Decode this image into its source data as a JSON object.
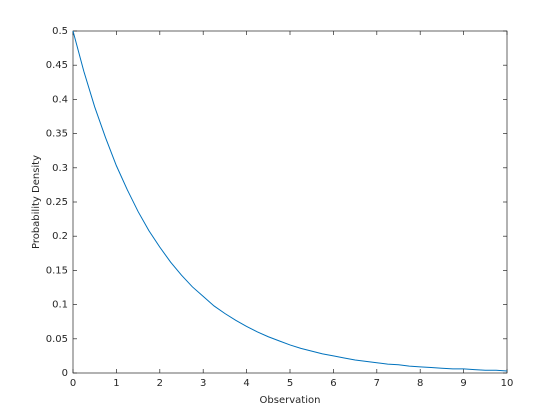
{
  "chart_data": {
    "type": "line",
    "xlabel": "Observation",
    "ylabel": "Probability Density",
    "x": [
      0,
      0.25,
      0.5,
      0.75,
      1,
      1.25,
      1.5,
      1.75,
      2,
      2.25,
      2.5,
      2.75,
      3,
      3.25,
      3.5,
      3.75,
      4,
      4.25,
      4.5,
      4.75,
      5,
      5.25,
      5.5,
      5.75,
      6,
      6.25,
      6.5,
      6.75,
      7,
      7.25,
      7.5,
      7.75,
      8,
      8.25,
      8.5,
      8.75,
      9,
      9.25,
      9.5,
      9.75,
      10
    ],
    "series": [
      {
        "color": "#0072bd",
        "values": [
          0.5,
          0.441,
          0.389,
          0.344,
          0.303,
          0.268,
          0.236,
          0.208,
          0.184,
          0.162,
          0.143,
          0.126,
          0.112,
          0.098,
          0.087,
          0.077,
          0.068,
          0.06,
          0.053,
          0.047,
          0.041,
          0.036,
          0.032,
          0.028,
          0.025,
          0.022,
          0.019,
          0.017,
          0.015,
          0.013,
          0.012,
          0.01,
          0.009,
          0.008,
          0.007,
          0.006,
          0.006,
          0.005,
          0.004,
          0.004,
          0.003
        ]
      }
    ],
    "xlim": [
      0,
      10
    ],
    "xticks": [
      0,
      1,
      2,
      3,
      4,
      5,
      6,
      7,
      8,
      9,
      10
    ],
    "ylim": [
      0,
      0.5
    ],
    "yticks": [
      0,
      0.05,
      0.1,
      0.15,
      0.2,
      0.25,
      0.3,
      0.35,
      0.4,
      0.45,
      0.5
    ]
  }
}
